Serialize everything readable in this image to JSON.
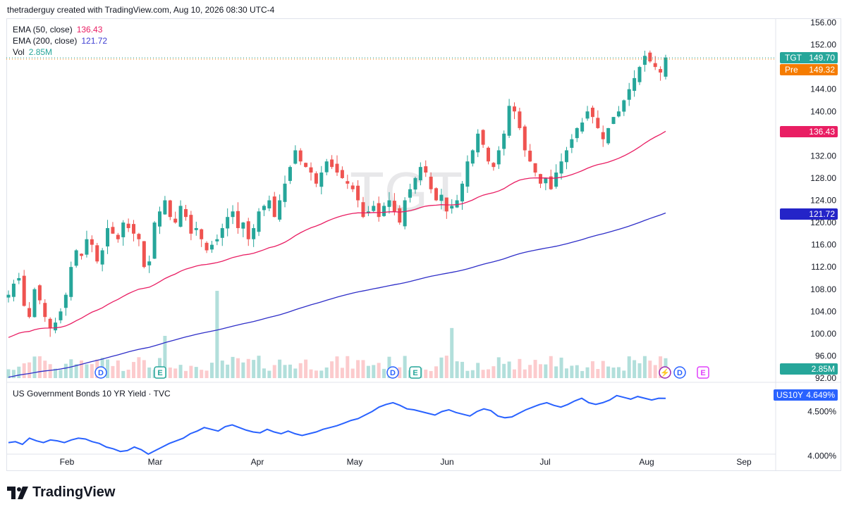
{
  "header": {
    "attribution": "thetraderguy created with TradingView.com, Aug 10, 2026 08:30 UTC-4"
  },
  "watermark": "TGT",
  "indicators": [
    {
      "name": "EMA (50, close)",
      "value": "136.43",
      "color": "#e91e63"
    },
    {
      "name": "EMA (200, close)",
      "value": "121.72",
      "color": "#3f3fd3"
    },
    {
      "name": "Vol",
      "value": "2.85M",
      "color": "#26a69a"
    }
  ],
  "price_axis": {
    "ticks": [
      "156.00",
      "152.00",
      "144.00",
      "140.00",
      "132.00",
      "128.00",
      "124.00",
      "120.00",
      "116.00",
      "112.00",
      "108.00",
      "104.00",
      "100.00",
      "96.00",
      "92.00"
    ]
  },
  "badges": {
    "last": {
      "symbol": "TGT",
      "value": "149.70",
      "color": "#26a69a"
    },
    "pre": {
      "label": "Pre",
      "value": "149.32",
      "color": "#f57c00"
    },
    "ema50": {
      "value": "136.43",
      "color": "#e91e63"
    },
    "ema200": {
      "value": "121.72",
      "color": "#2424c8"
    },
    "vol": {
      "value": "2.85M",
      "color": "#26a69a"
    }
  },
  "events": {
    "dividend": "D",
    "earnings": "E",
    "split": "⚡"
  },
  "yield_pane": {
    "title": "US Government Bonds 10 YR Yield · TVC",
    "badge_symbol": "US10Y",
    "badge_value": "4.649%",
    "ticks": [
      "4.500%",
      "4.000%"
    ]
  },
  "time_axis": {
    "labels": [
      "Feb",
      "Mar",
      "Apr",
      "May",
      "Jun",
      "Jul",
      "Aug",
      "Sep"
    ]
  },
  "footer": {
    "brand": "TradingView"
  },
  "colors": {
    "up": "#26a69a",
    "down": "#ef5350",
    "up_vol": "#b2dfdb",
    "down_vol": "#fccbcd",
    "yield": "#2962ff"
  },
  "chart_data": [
    {
      "type": "candlestick",
      "symbol": "TGT",
      "ylim": [
        92,
        156
      ],
      "x_labels": [
        "Feb",
        "Mar",
        "Apr",
        "May",
        "Jun",
        "Jul",
        "Aug",
        "Sep"
      ],
      "close_path": [
        107,
        109,
        110,
        105,
        103,
        108,
        106,
        103,
        101,
        102,
        104,
        107,
        112,
        115,
        114,
        117,
        116,
        113,
        115,
        119,
        118,
        117,
        120,
        119,
        118,
        117,
        112,
        113,
        120,
        122,
        124,
        121,
        120,
        123,
        121,
        118,
        119,
        117,
        115,
        116,
        117,
        119,
        121,
        122,
        119,
        120,
        117,
        119,
        122,
        123,
        124,
        121,
        124,
        127,
        130,
        133,
        131,
        130,
        129,
        127,
        129,
        131,
        130,
        129,
        128,
        127,
        126,
        124,
        121,
        122,
        123,
        121,
        123,
        124,
        122,
        120,
        124,
        126,
        128,
        130,
        129,
        126,
        124,
        125,
        122,
        123,
        124,
        127,
        131,
        133,
        136,
        134,
        131,
        130,
        133,
        136,
        141,
        140,
        137,
        133,
        131,
        129,
        127,
        128,
        126,
        129,
        131,
        133,
        135,
        137,
        138,
        140,
        139,
        137,
        135,
        137,
        139,
        140,
        142,
        144,
        146,
        148,
        150,
        149,
        148,
        147,
        149.7
      ],
      "ema50_end": 136.43,
      "ema200_end": 121.72,
      "last": 149.7,
      "pre_market": 149.32
    },
    {
      "type": "line",
      "symbol": "US10Y",
      "ylim": [
        3.98,
        4.75
      ],
      "values": [
        4.15,
        4.16,
        4.13,
        4.2,
        4.17,
        4.15,
        4.18,
        4.17,
        4.15,
        4.18,
        4.2,
        4.19,
        4.16,
        4.14,
        4.1,
        4.08,
        4.05,
        4.06,
        4.1,
        4.07,
        4.02,
        4.06,
        4.1,
        4.14,
        4.17,
        4.2,
        4.25,
        4.28,
        4.32,
        4.3,
        4.28,
        4.33,
        4.35,
        4.32,
        4.29,
        4.27,
        4.26,
        4.3,
        4.27,
        4.25,
        4.28,
        4.25,
        4.23,
        4.25,
        4.27,
        4.3,
        4.32,
        4.34,
        4.37,
        4.4,
        4.42,
        4.46,
        4.5,
        4.55,
        4.58,
        4.6,
        4.57,
        4.53,
        4.52,
        4.5,
        4.48,
        4.46,
        4.5,
        4.52,
        4.49,
        4.47,
        4.45,
        4.5,
        4.53,
        4.51,
        4.45,
        4.43,
        4.44,
        4.48,
        4.52,
        4.55,
        4.58,
        4.6,
        4.57,
        4.55,
        4.58,
        4.62,
        4.65,
        4.6,
        4.58,
        4.6,
        4.63,
        4.68,
        4.66,
        4.64,
        4.67,
        4.65,
        4.63,
        4.65,
        4.649
      ],
      "last": 4.649
    }
  ]
}
